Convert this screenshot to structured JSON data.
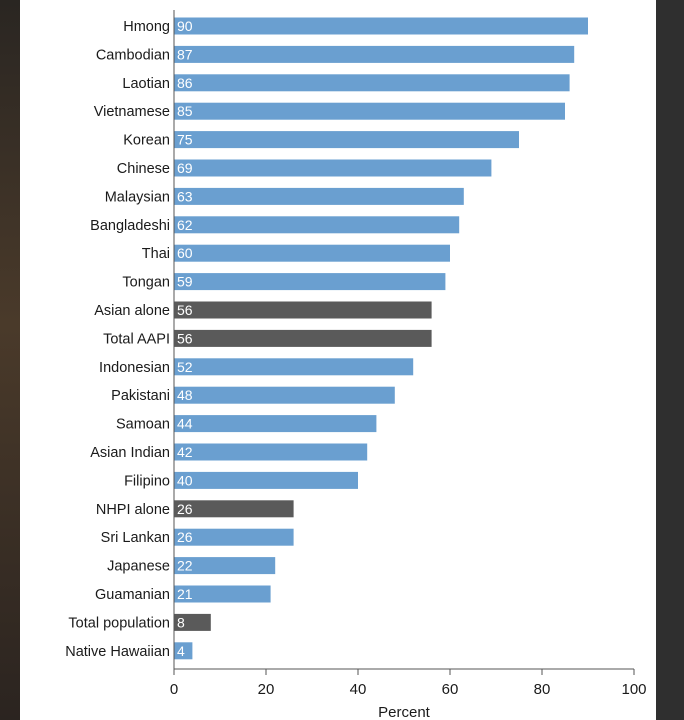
{
  "chart_data": {
    "type": "bar",
    "orientation": "horizontal",
    "categories": [
      "Hmong",
      "Cambodian",
      "Laotian",
      "Vietnamese",
      "Korean",
      "Chinese",
      "Malaysian",
      "Bangladeshi",
      "Thai",
      "Tongan",
      "Asian alone",
      "Total AAPI",
      "Indonesian",
      "Pakistani",
      "Samoan",
      "Asian Indian",
      "Filipino",
      "NHPI alone",
      "Sri Lankan",
      "Japanese",
      "Guamanian",
      "Total population",
      "Native Hawaiian"
    ],
    "values": [
      90,
      87,
      86,
      85,
      75,
      69,
      63,
      62,
      60,
      59,
      56,
      56,
      52,
      48,
      44,
      42,
      40,
      26,
      26,
      22,
      21,
      8,
      4
    ],
    "highlighted": [
      "Asian alone",
      "Total AAPI",
      "NHPI alone",
      "Total population"
    ],
    "xlabel": "Percent",
    "ylabel": "",
    "xlim": [
      0,
      100
    ],
    "xticks": [
      0,
      20,
      40,
      60,
      80,
      100
    ],
    "grid": false,
    "legend": "none",
    "colors": {
      "bar": "#6a9fd0",
      "highlight": "#5a5a5a",
      "value_label": "#ffffff",
      "text": "#1a1a1a",
      "axis": "#555555"
    }
  }
}
